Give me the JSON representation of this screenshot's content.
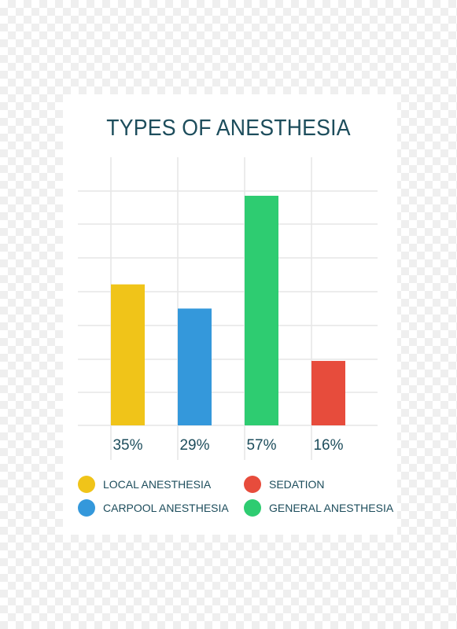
{
  "chart_data": {
    "type": "bar",
    "title": "TYPES OF ANESTHESIA",
    "xlabel": "",
    "ylabel": "",
    "categories": [
      "LOCAL ANESTHESIA",
      "CARPOOL ANESTHESIA",
      "GENERAL ANESTHESIA",
      "SEDATION"
    ],
    "values": [
      35,
      29,
      57,
      16
    ],
    "value_labels": [
      "35%",
      "29%",
      "57%",
      "16%"
    ],
    "colors": [
      "#f0c419",
      "#3498db",
      "#2ecc71",
      "#e74c3c"
    ],
    "ylim": [
      0,
      65
    ],
    "grid": true,
    "legend_position": "bottom"
  },
  "legend": [
    {
      "label": "LOCAL ANESTHESIA",
      "color": "#f0c419"
    },
    {
      "label": "SEDATION",
      "color": "#e74c3c"
    },
    {
      "label": "CARPOOL ANESTHESIA",
      "color": "#3498db"
    },
    {
      "label": "GENERAL ANESTHESIA",
      "color": "#2ecc71"
    }
  ],
  "colors": {
    "title": "#1d4d5c",
    "grid": "#e6e6e6"
  }
}
